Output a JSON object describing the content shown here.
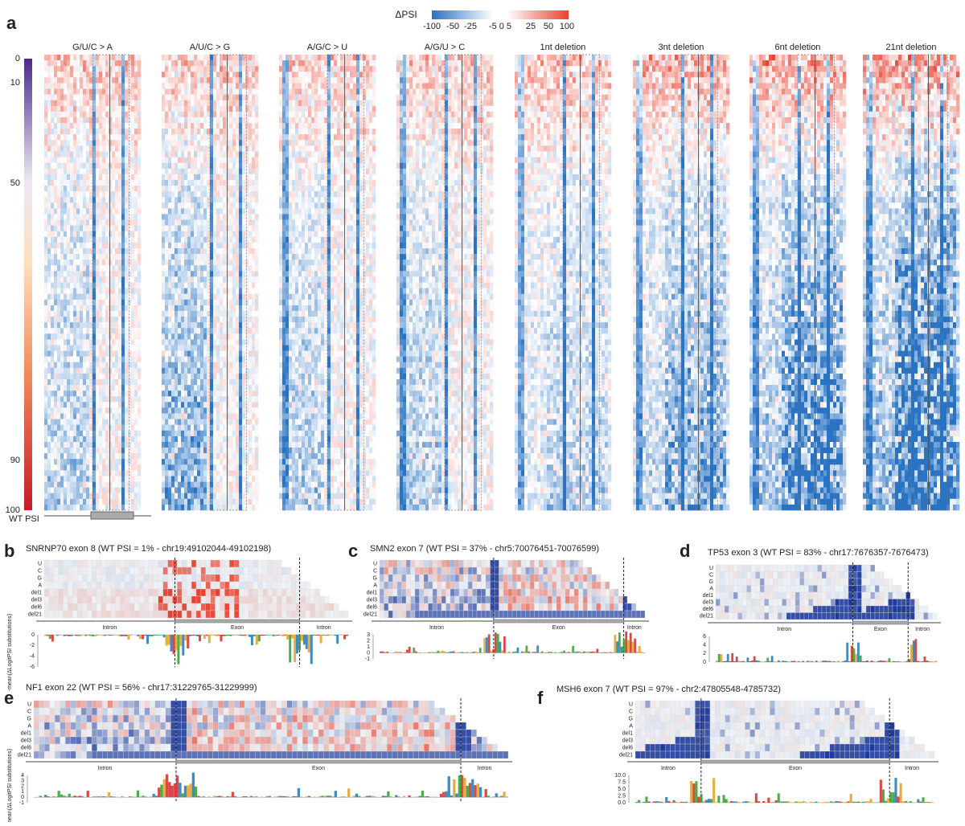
{
  "panel_a": {
    "label": "a",
    "colorbar_title": "ΔPSI",
    "colorbar_ticks": [
      "-100",
      "-50",
      "-25",
      "-5 0 5",
      "25",
      "50",
      "100"
    ],
    "columns": [
      "G/U/C > A",
      "A/U/C > G",
      "A/G/C > U",
      "A/G/U > C",
      "1nt deletion",
      "3nt deletion",
      "6nt deletion",
      "21nt deletion"
    ],
    "wt_psi_label": "WT PSI",
    "wt_psi_ticks": [
      "0",
      "10",
      "50",
      "90",
      "100"
    ]
  },
  "row_labels": [
    "U",
    "C",
    "G",
    "A",
    "del1",
    "del3",
    "del6",
    "del21"
  ],
  "structure_labels": [
    "Intron",
    "Exon",
    "Intron"
  ],
  "y_axis_label": "-mean(ΔLogitPSI substitutions)",
  "panels": [
    {
      "label": "b",
      "title": "SNRNP70 exon 8 (WT PSI = 1% - chr19:49102044-49102198)",
      "yticks": [
        "0",
        "-2",
        "-4",
        "-6"
      ]
    },
    {
      "label": "c",
      "title": "SMN2 exon 7 (WT PSI = 37% - chr5:70076451-70076599)",
      "yticks": [
        "3",
        "2",
        "1",
        "0",
        "-1"
      ]
    },
    {
      "label": "d",
      "title": "TP53 exon 3 (WT PSI = 83% - chr17:7676357-7676473)",
      "yticks": [
        "6",
        "4",
        "2",
        "0"
      ]
    },
    {
      "label": "e",
      "title": "NF1 exon 22 (WT PSI = 56% - chr17:31229765-31229999)",
      "yticks": [
        "4",
        "3",
        "2",
        "1",
        "0",
        "-1"
      ]
    },
    {
      "label": "f",
      "title": "MSH6 exon 7 (WT PSI = 97% - chr2:47805548-4785732)",
      "yticks": [
        "10.0",
        "7.5",
        "5.0",
        "2.5",
        "0.0"
      ]
    }
  ]
}
